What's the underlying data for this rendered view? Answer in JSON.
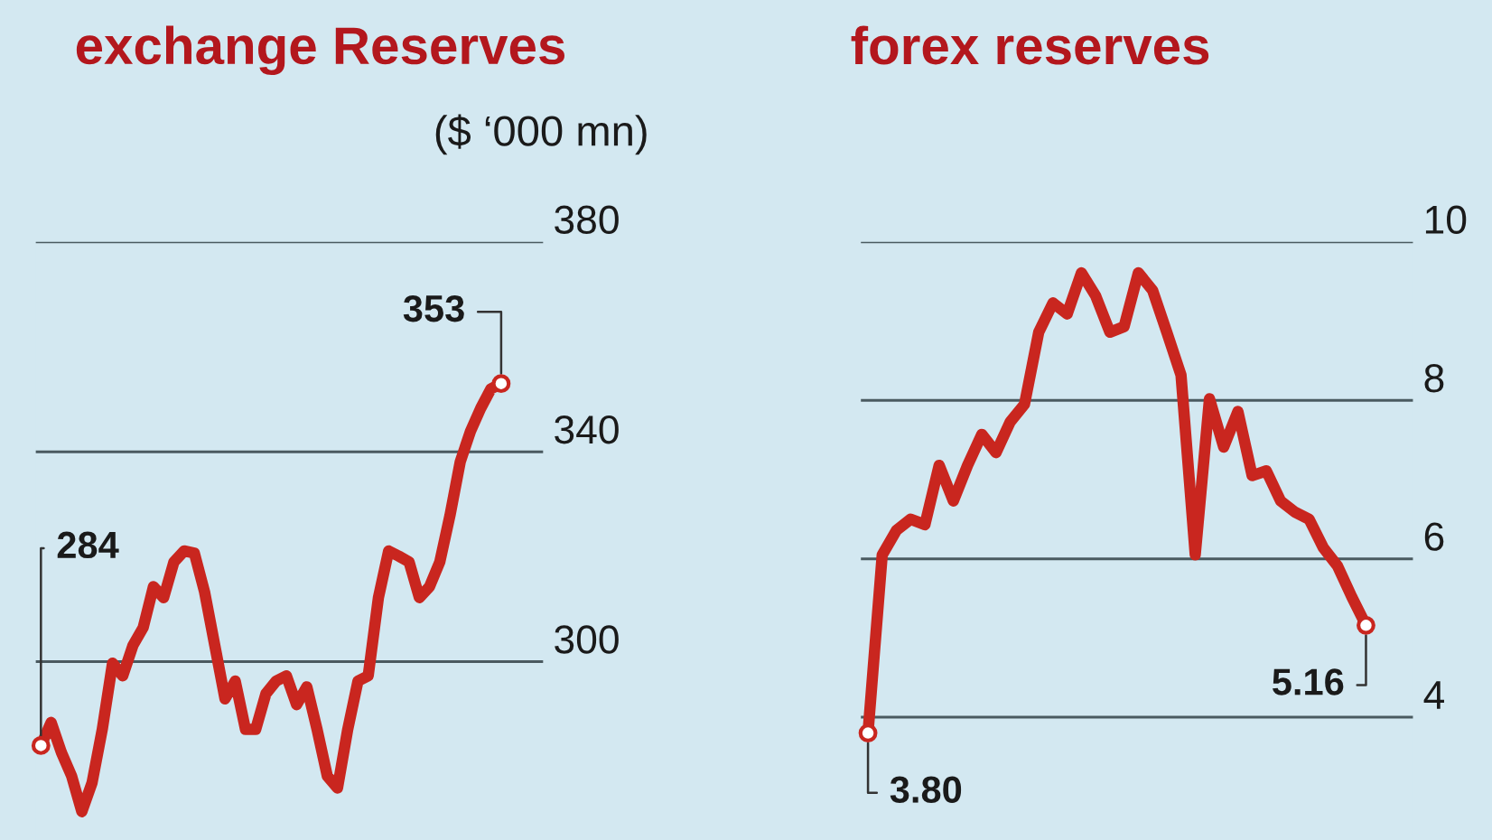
{
  "chart_data": [
    {
      "type": "line",
      "title": "exchange Reserves",
      "subtitle": "($ ‘000 mn)",
      "categories": [
        null,
        null,
        null,
        null,
        null,
        null,
        null,
        null,
        null,
        null,
        null,
        null,
        null,
        null,
        null,
        null,
        null,
        null,
        null,
        null,
        null,
        null,
        null,
        null,
        null,
        null,
        null,
        null,
        null,
        null,
        null,
        null,
        null,
        null,
        null,
        null,
        null,
        null,
        null,
        null,
        null,
        null,
        null,
        null,
        null,
        null
      ],
      "series": [
        {
          "color": "#c9261f",
          "values": [
            284,
            288.4,
            282.7,
            278.2,
            271.4,
            276.9,
            287.1,
            299.7,
            297.3,
            303.1,
            306.5,
            314.3,
            312.2,
            319.0,
            321.1,
            320.7,
            313.3,
            303.1,
            292.9,
            296.3,
            287.1,
            287.1,
            293.9,
            296.3,
            297.3,
            291.8,
            295.2,
            287.1,
            278.2,
            275.9,
            287.1,
            296.3,
            297.3,
            312.2,
            321.1,
            320.1,
            319.0,
            312.2,
            314.3,
            319.0,
            327.9,
            338.1,
            343.9,
            348.3,
            352,
            353
          ],
          "value_labels": [
            "284",
            null,
            null,
            null,
            null,
            null,
            null,
            null,
            null,
            null,
            null,
            null,
            null,
            null,
            null,
            null,
            null,
            null,
            null,
            null,
            null,
            null,
            null,
            null,
            null,
            null,
            null,
            null,
            null,
            null,
            null,
            null,
            null,
            null,
            null,
            null,
            null,
            null,
            null,
            null,
            null,
            null,
            null,
            null,
            null,
            "353"
          ]
        }
      ],
      "ylim": [
        266,
        380
      ],
      "yticks": [
        300,
        340,
        380
      ],
      "grid": "y",
      "tick_labels": "y"
    },
    {
      "type": "line",
      "title": "forex reserves",
      "categories": [
        null,
        null,
        null,
        null,
        null,
        null,
        null,
        null,
        null,
        null,
        null,
        null,
        null,
        null,
        null,
        null,
        null,
        null,
        null,
        null,
        null,
        null,
        null,
        null,
        null,
        null,
        null,
        null,
        null,
        null,
        null,
        null,
        null,
        null,
        null,
        null
      ],
      "series": [
        {
          "color": "#c9261f",
          "values": [
            3.8,
            6.05,
            6.36,
            6.5,
            6.43,
            7.18,
            6.73,
            7.18,
            7.57,
            7.34,
            7.73,
            7.95,
            8.86,
            9.23,
            9.09,
            9.61,
            9.32,
            8.86,
            8.93,
            9.61,
            9.39,
            8.86,
            8.32,
            6.05,
            8.02,
            7.41,
            7.86,
            7.05,
            7.11,
            6.73,
            6.59,
            6.5,
            6.14,
            5.91,
            5.52,
            5.16
          ],
          "value_labels": [
            "3.80",
            null,
            null,
            null,
            null,
            null,
            null,
            null,
            null,
            null,
            null,
            null,
            null,
            null,
            null,
            null,
            null,
            null,
            null,
            null,
            null,
            null,
            null,
            null,
            null,
            null,
            null,
            null,
            null,
            null,
            null,
            null,
            null,
            null,
            null,
            "5.16"
          ]
        }
      ],
      "ylim": [
        2.45,
        10
      ],
      "yticks": [
        4,
        6,
        8,
        10
      ],
      "grid": "y",
      "tick_labels": "y"
    }
  ]
}
